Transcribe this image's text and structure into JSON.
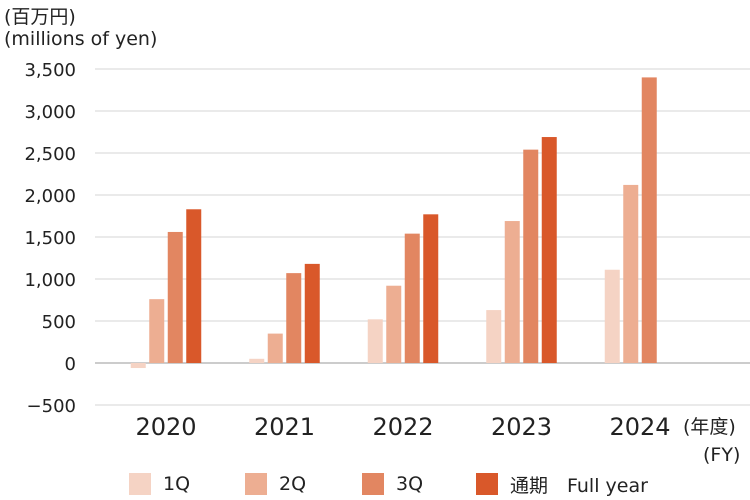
{
  "unit_label": {
    "line1": "(百万円)",
    "line2": "(millions of yen)"
  },
  "fy_label": {
    "line1": "(年度)",
    "line2": "(FY)"
  },
  "chart_data": {
    "type": "bar",
    "title": "",
    "xlabel": "(年度) (FY)",
    "ylabel": "(百万円) (millions of yen)",
    "ylim": [
      -500,
      3500
    ],
    "yticks": [
      -500,
      0,
      500,
      1000,
      1500,
      2000,
      2500,
      3000,
      3500
    ],
    "ytick_labels": [
      "−500",
      "0",
      "500",
      "1,000",
      "1,500",
      "2,000",
      "2,500",
      "3,000",
      "3,500"
    ],
    "grid": true,
    "legend_position": "bottom",
    "categories": [
      "2020",
      "2021",
      "2022",
      "2023",
      "2024"
    ],
    "series": [
      {
        "name": "1Q",
        "color": "#f5d3c4",
        "values": [
          -60,
          50,
          520,
          630,
          1110
        ]
      },
      {
        "name": "2Q",
        "color": "#edae92",
        "values": [
          760,
          350,
          920,
          1690,
          2120
        ]
      },
      {
        "name": "3Q",
        "color": "#e28661",
        "values": [
          1560,
          1070,
          1540,
          2540,
          3400
        ]
      },
      {
        "name": "通期　Full year",
        "color": "#d9582a",
        "values": [
          1830,
          1180,
          1770,
          2690,
          null
        ]
      }
    ]
  }
}
